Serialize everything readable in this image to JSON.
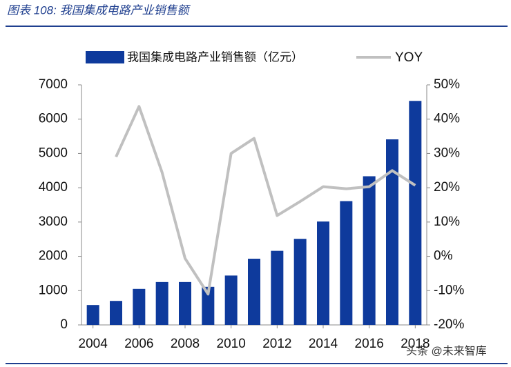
{
  "header": {
    "title": "图表 108: 我国集成电路产业销售额"
  },
  "chart_data": {
    "type": "bar-line",
    "x": [
      2004,
      2005,
      2006,
      2007,
      2008,
      2009,
      2010,
      2011,
      2012,
      2013,
      2014,
      2015,
      2016,
      2017,
      2018
    ],
    "xticks": [
      2004,
      2006,
      2008,
      2010,
      2012,
      2014,
      2016,
      2018
    ],
    "series": [
      {
        "name": "我国集成电路产业销售额（亿元）",
        "type": "bar",
        "color": "#0e3a9c",
        "values": [
          580,
          700,
          1050,
          1250,
          1250,
          1110,
          1440,
          1930,
          2160,
          2510,
          3015,
          3610,
          4335,
          5411,
          6532
        ]
      },
      {
        "name": "YOY",
        "type": "line",
        "axis": "y2",
        "color": "#c0c0c0",
        "values": [
          null,
          29,
          43.7,
          24.5,
          -0.6,
          -11,
          30,
          34.4,
          11.9,
          16,
          20.3,
          19.7,
          20.3,
          25,
          20.7
        ]
      }
    ],
    "ylim": [
      0,
      7000
    ],
    "yticks": [
      0,
      1000,
      2000,
      3000,
      4000,
      5000,
      6000,
      7000
    ],
    "y2lim": [
      -20,
      50
    ],
    "y2ticks": [
      {
        "value": -20,
        "label": "-20%"
      },
      {
        "value": -10,
        "label": "-10%"
      },
      {
        "value": 0,
        "label": "0%"
      },
      {
        "value": 10,
        "label": "10%"
      },
      {
        "value": 20,
        "label": "20%"
      },
      {
        "value": 30,
        "label": "30%"
      },
      {
        "value": 40,
        "label": "40%"
      },
      {
        "value": 50,
        "label": "50%"
      }
    ],
    "grid": false
  },
  "watermark": "头条 @未来智库"
}
